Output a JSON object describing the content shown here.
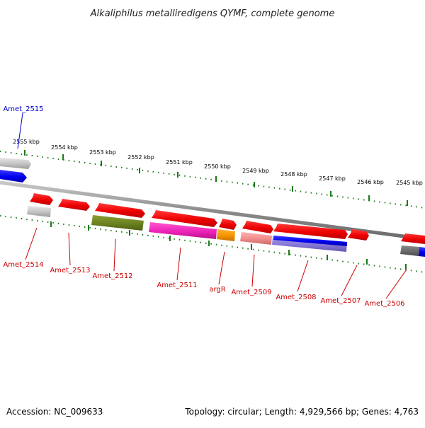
{
  "title": "Alkaliphilus metalliredigens QYMF, complete genome",
  "footer": {
    "accession": "Accession: NC_009633",
    "summary": "Topology: circular; Length: 4,929,566 bp; Genes: 4,763"
  },
  "colors": {
    "backbone": "#8c8c8c",
    "ticks": "#1a7a1a",
    "label_red": "#cc0000",
    "label_blue": "#0000cc"
  },
  "ticks": [
    {
      "label": "2555 kbp"
    },
    {
      "label": "2554 kbp"
    },
    {
      "label": "2553 kbp"
    },
    {
      "label": "2552 kbp"
    },
    {
      "label": "2551 kbp"
    },
    {
      "label": "2550 kbp"
    },
    {
      "label": "2549 kbp"
    },
    {
      "label": "2548 kbp"
    },
    {
      "label": "2547 kbp"
    },
    {
      "label": "2546 kbp"
    },
    {
      "label": "2545 kbp"
    }
  ],
  "genes": [
    {
      "name": "Amet_2515",
      "color": "#0000cc"
    },
    {
      "name": "Amet_2514",
      "color": "#cc0000"
    },
    {
      "name": "Amet_2513",
      "color": "#cc0000"
    },
    {
      "name": "Amet_2512",
      "color": "#cc0000"
    },
    {
      "name": "Amet_2511",
      "color": "#cc0000"
    },
    {
      "name": "argR",
      "color": "#cc0000"
    },
    {
      "name": "Amet_2509",
      "color": "#cc0000"
    },
    {
      "name": "Amet_2508",
      "color": "#cc0000"
    },
    {
      "name": "Amet_2507",
      "color": "#cc0000"
    },
    {
      "name": "Amet_2506",
      "color": "#cc0000"
    }
  ]
}
